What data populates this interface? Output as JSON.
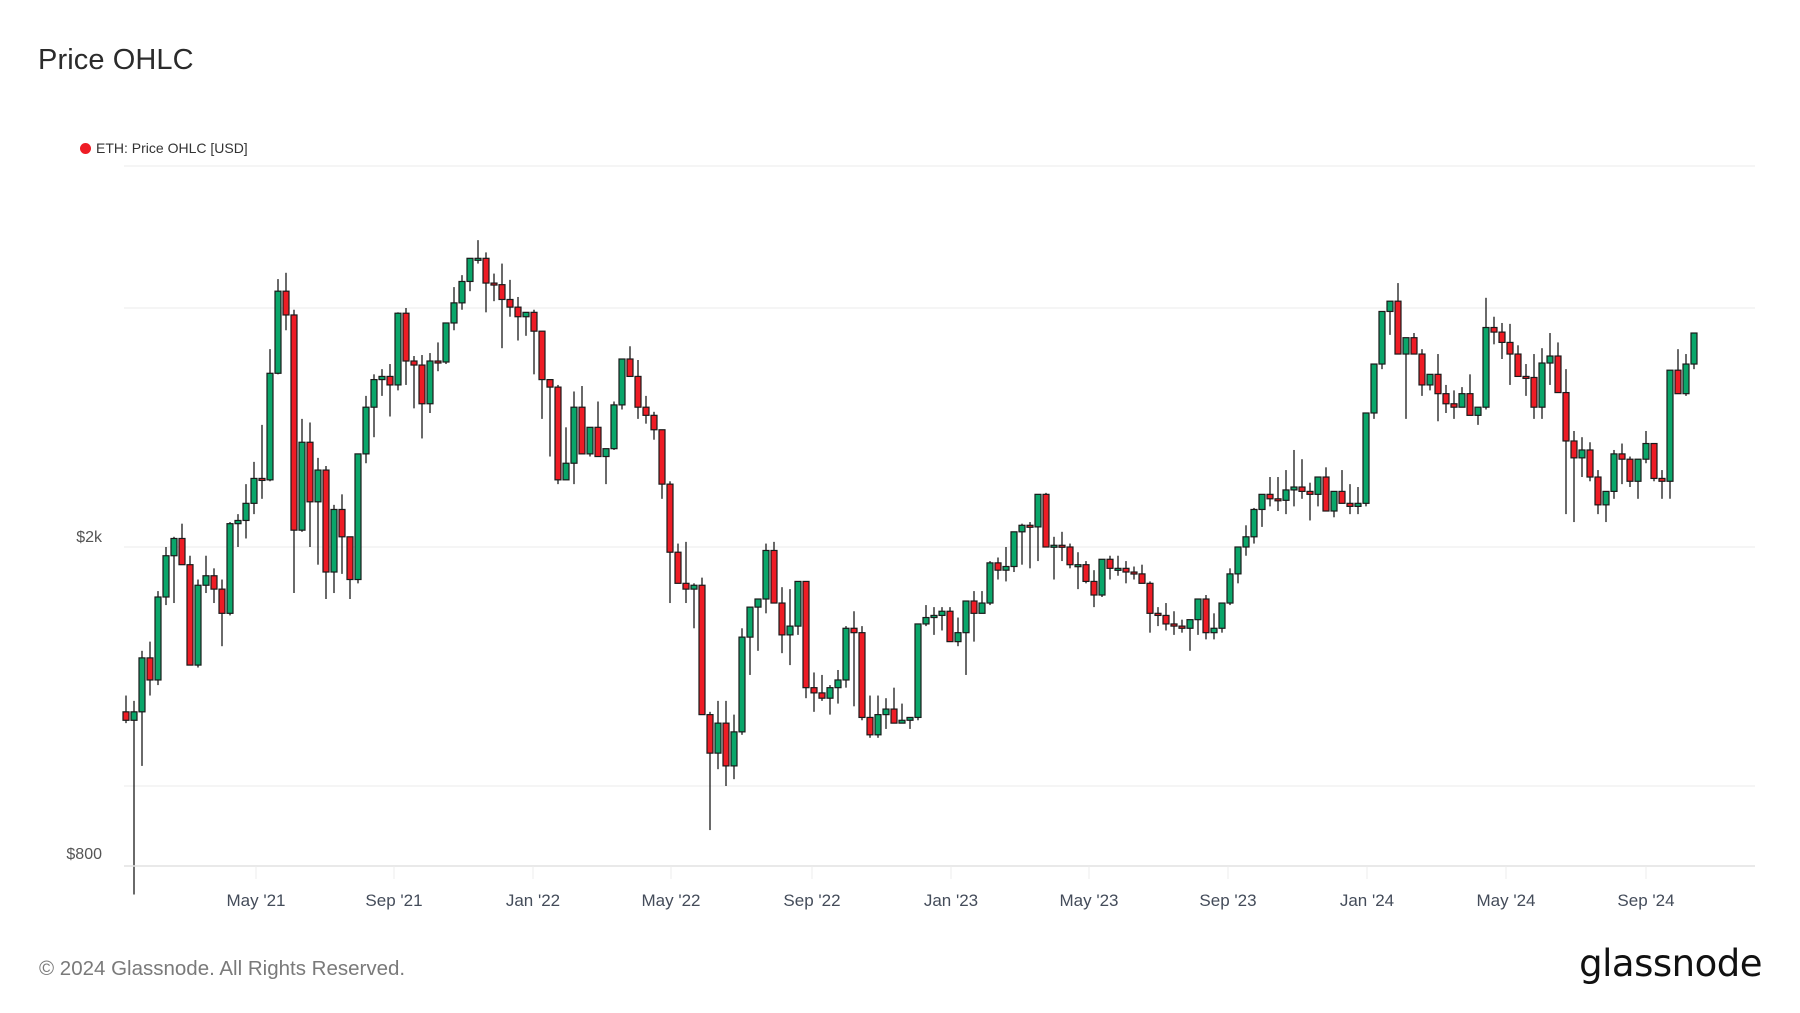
{
  "header": {
    "title": "Price OHLC"
  },
  "legend": {
    "label": "ETH: Price OHLC [USD]",
    "dot_color": "#ee1c25"
  },
  "footer": {
    "copyright": "© 2024 Glassnode. All Rights Reserved.",
    "logo": "glassnode"
  },
  "colors": {
    "up": "#0aa66a",
    "down": "#ee1c25",
    "outline": "#1a1a1a",
    "grid": "#efefef",
    "axis": "#e2e2e2"
  },
  "chart_data": {
    "type": "candlestick",
    "title": "Price OHLC",
    "series_name": "ETH: Price OHLC [USD]",
    "xlabel": "",
    "ylabel": "",
    "y_scale": "log",
    "y_ticks": [
      {
        "value": 2000,
        "label": "$2k"
      },
      {
        "value": 800,
        "label": "$800"
      }
    ],
    "gridlines_y": [
      6000,
      4000,
      2000,
      1000
    ],
    "ylim": [
      800,
      6000
    ],
    "grid": true,
    "legend_position": "top-left",
    "x_ticks": [
      "May '21",
      "Sep '21",
      "Jan '22",
      "May '22",
      "Sep '22",
      "Jan '23",
      "May '23",
      "Sep '23",
      "Jan '24",
      "May '24",
      "Sep '24"
    ],
    "interval": "weekly",
    "candles": [
      [
        1240,
        1300,
        1200,
        1210
      ],
      [
        1210,
        1280,
        730,
        1240
      ],
      [
        1240,
        1480,
        1060,
        1450
      ],
      [
        1450,
        1520,
        1300,
        1360
      ],
      [
        1360,
        1760,
        1340,
        1730
      ],
      [
        1730,
        2000,
        1690,
        1950
      ],
      [
        1950,
        2060,
        1700,
        2050
      ],
      [
        2050,
        2140,
        1950,
        1900
      ],
      [
        1900,
        1950,
        1500,
        1420
      ],
      [
        1420,
        1820,
        1410,
        1790
      ],
      [
        1790,
        1950,
        1750,
        1840
      ],
      [
        1840,
        1880,
        1700,
        1770
      ],
      [
        1770,
        1820,
        1500,
        1650
      ],
      [
        1650,
        2150,
        1640,
        2140
      ],
      [
        2140,
        2200,
        2000,
        2160
      ],
      [
        2160,
        2400,
        2050,
        2270
      ],
      [
        2270,
        2560,
        2200,
        2440
      ],
      [
        2440,
        2850,
        2300,
        2430
      ],
      [
        2430,
        3550,
        2420,
        3310
      ],
      [
        3310,
        4350,
        3300,
        4200
      ],
      [
        4200,
        4430,
        3750,
        3920
      ],
      [
        3920,
        3980,
        1750,
        2100
      ],
      [
        2100,
        2900,
        2090,
        2710
      ],
      [
        2710,
        2870,
        2000,
        2280
      ],
      [
        2280,
        2590,
        1900,
        2500
      ],
      [
        2500,
        2530,
        1720,
        1860
      ],
      [
        1860,
        2260,
        1750,
        2230
      ],
      [
        2230,
        2330,
        1850,
        2060
      ],
      [
        2060,
        2000,
        1720,
        1820
      ],
      [
        1820,
        2600,
        1800,
        2620
      ],
      [
        2620,
        3100,
        2550,
        3000
      ],
      [
        3000,
        3300,
        2750,
        3250
      ],
      [
        3250,
        3350,
        3100,
        3280
      ],
      [
        3280,
        3400,
        2920,
        3200
      ],
      [
        3200,
        3950,
        3150,
        3940
      ],
      [
        3940,
        4000,
        3200,
        3430
      ],
      [
        3430,
        3480,
        2990,
        3390
      ],
      [
        3390,
        3490,
        2740,
        3030
      ],
      [
        3030,
        3510,
        2950,
        3430
      ],
      [
        3430,
        3620,
        3330,
        3420
      ],
      [
        3420,
        3700,
        3400,
        3830
      ],
      [
        3830,
        4250,
        3750,
        4060
      ],
      [
        4060,
        4400,
        3980,
        4320
      ],
      [
        4320,
        4570,
        4200,
        4620
      ],
      [
        4620,
        4870,
        4550,
        4620
      ],
      [
        4620,
        4700,
        3950,
        4300
      ],
      [
        4300,
        4420,
        4080,
        4280
      ],
      [
        4280,
        4550,
        3560,
        4100
      ],
      [
        4100,
        4340,
        3900,
        4010
      ],
      [
        4010,
        4130,
        3640,
        3900
      ],
      [
        3900,
        3920,
        3690,
        3950
      ],
      [
        3950,
        3980,
        3300,
        3740
      ],
      [
        3740,
        3570,
        2900,
        3250
      ],
      [
        3250,
        3170,
        2600,
        3180
      ],
      [
        3180,
        3200,
        2400,
        2430
      ],
      [
        2430,
        2830,
        2440,
        2550
      ],
      [
        2550,
        3140,
        2400,
        3000
      ],
      [
        3000,
        3190,
        2740,
        2620
      ],
      [
        2620,
        2800,
        2600,
        2830
      ],
      [
        2830,
        3050,
        2700,
        2600
      ],
      [
        2600,
        2640,
        2400,
        2660
      ],
      [
        2660,
        3050,
        2650,
        3020
      ],
      [
        3020,
        3450,
        2980,
        3450
      ],
      [
        3450,
        3580,
        3280,
        3280
      ],
      [
        3280,
        3440,
        2900,
        3000
      ],
      [
        3000,
        3100,
        2860,
        2930
      ],
      [
        2930,
        2960,
        2730,
        2810
      ],
      [
        2810,
        2800,
        2300,
        2400
      ],
      [
        2400,
        2420,
        1700,
        1970
      ],
      [
        1970,
        2020,
        1800,
        1800
      ],
      [
        1800,
        2030,
        1700,
        1770
      ],
      [
        1770,
        1800,
        1580,
        1790
      ],
      [
        1790,
        1830,
        1680,
        1230
      ],
      [
        1230,
        1240,
        880,
        1100
      ],
      [
        1100,
        1280,
        1050,
        1200
      ],
      [
        1200,
        1280,
        1000,
        1060
      ],
      [
        1060,
        1230,
        1020,
        1170
      ],
      [
        1170,
        1580,
        1160,
        1540
      ],
      [
        1540,
        1670,
        1380,
        1680
      ],
      [
        1680,
        1700,
        1480,
        1720
      ],
      [
        1720,
        2020,
        1650,
        1980
      ],
      [
        1980,
        2030,
        1700,
        1700
      ],
      [
        1700,
        1780,
        1470,
        1550
      ],
      [
        1550,
        1770,
        1420,
        1590
      ],
      [
        1590,
        1680,
        1550,
        1810
      ],
      [
        1810,
        1800,
        1290,
        1330
      ],
      [
        1330,
        1390,
        1240,
        1310
      ],
      [
        1310,
        1380,
        1280,
        1290
      ],
      [
        1290,
        1340,
        1230,
        1330
      ],
      [
        1330,
        1400,
        1270,
        1360
      ],
      [
        1360,
        1590,
        1330,
        1580
      ],
      [
        1580,
        1660,
        1260,
        1560
      ],
      [
        1560,
        1590,
        1210,
        1220
      ],
      [
        1220,
        1300,
        1150,
        1160
      ],
      [
        1160,
        1300,
        1150,
        1230
      ],
      [
        1230,
        1290,
        1180,
        1250
      ],
      [
        1250,
        1330,
        1220,
        1200
      ],
      [
        1200,
        1270,
        1210,
        1210
      ],
      [
        1210,
        1220,
        1180,
        1220
      ],
      [
        1220,
        1390,
        1210,
        1600
      ],
      [
        1600,
        1690,
        1590,
        1630
      ],
      [
        1630,
        1680,
        1550,
        1640
      ],
      [
        1640,
        1680,
        1570,
        1660
      ],
      [
        1660,
        1680,
        1520,
        1520
      ],
      [
        1520,
        1630,
        1500,
        1560
      ],
      [
        1560,
        1610,
        1380,
        1710
      ],
      [
        1710,
        1760,
        1520,
        1650
      ],
      [
        1650,
        1760,
        1650,
        1700
      ],
      [
        1700,
        1920,
        1690,
        1910
      ],
      [
        1910,
        1940,
        1820,
        1870
      ],
      [
        1870,
        2000,
        1810,
        1890
      ],
      [
        1890,
        1990,
        1860,
        2090
      ],
      [
        2090,
        2140,
        1900,
        2130
      ],
      [
        2130,
        2150,
        1880,
        2120
      ],
      [
        2120,
        2180,
        1920,
        2330
      ],
      [
        2330,
        2340,
        2100,
        2000
      ],
      [
        2000,
        2060,
        1820,
        2010
      ],
      [
        2010,
        2090,
        1920,
        2000
      ],
      [
        2000,
        2020,
        1880,
        1900
      ],
      [
        1900,
        1970,
        1770,
        1900
      ],
      [
        1900,
        1920,
        1800,
        1810
      ],
      [
        1810,
        1870,
        1680,
        1740
      ],
      [
        1740,
        1880,
        1730,
        1930
      ],
      [
        1930,
        1950,
        1820,
        1880
      ],
      [
        1880,
        1950,
        1840,
        1880
      ],
      [
        1880,
        1920,
        1800,
        1860
      ],
      [
        1860,
        1890,
        1820,
        1850
      ],
      [
        1850,
        1900,
        1840,
        1800
      ],
      [
        1800,
        1810,
        1560,
        1650
      ],
      [
        1650,
        1680,
        1590,
        1640
      ],
      [
        1640,
        1700,
        1570,
        1600
      ],
      [
        1600,
        1660,
        1550,
        1590
      ],
      [
        1590,
        1620,
        1560,
        1580
      ],
      [
        1580,
        1600,
        1480,
        1620
      ],
      [
        1620,
        1720,
        1550,
        1720
      ],
      [
        1720,
        1740,
        1530,
        1560
      ],
      [
        1560,
        1650,
        1530,
        1580
      ],
      [
        1580,
        1700,
        1560,
        1700
      ],
      [
        1700,
        1880,
        1690,
        1850
      ],
      [
        1850,
        1960,
        1800,
        2000
      ],
      [
        2000,
        2130,
        1950,
        2060
      ],
      [
        2060,
        2240,
        2020,
        2230
      ],
      [
        2230,
        2300,
        2120,
        2330
      ],
      [
        2330,
        2450,
        2250,
        2300
      ],
      [
        2300,
        2450,
        2220,
        2290
      ],
      [
        2290,
        2500,
        2200,
        2360
      ],
      [
        2360,
        2650,
        2250,
        2380
      ],
      [
        2380,
        2580,
        2300,
        2350
      ],
      [
        2350,
        2410,
        2160,
        2330
      ],
      [
        2330,
        2400,
        2250,
        2450
      ],
      [
        2450,
        2520,
        2270,
        2220
      ],
      [
        2220,
        2300,
        2180,
        2350
      ],
      [
        2350,
        2500,
        2300,
        2270
      ],
      [
        2270,
        2400,
        2200,
        2250
      ],
      [
        2250,
        2380,
        2200,
        2270
      ],
      [
        2270,
        2750,
        2250,
        2950
      ],
      [
        2950,
        3000,
        2900,
        3400
      ],
      [
        3400,
        3600,
        3350,
        3960
      ],
      [
        3960,
        4000,
        3700,
        4080
      ],
      [
        4080,
        4300,
        3550,
        3500
      ],
      [
        3500,
        3600,
        2900,
        3670
      ],
      [
        3670,
        3720,
        3500,
        3500
      ],
      [
        3500,
        3550,
        3100,
        3200
      ],
      [
        3200,
        3300,
        3150,
        3300
      ],
      [
        3300,
        3500,
        2880,
        3120
      ],
      [
        3120,
        3200,
        2950,
        3030
      ],
      [
        3030,
        3150,
        2900,
        3000
      ],
      [
        3000,
        3180,
        3050,
        3120
      ],
      [
        3120,
        3300,
        3050,
        2930
      ],
      [
        2930,
        3000,
        2850,
        3000
      ],
      [
        3000,
        4120,
        2980,
        3780
      ],
      [
        3780,
        3900,
        3600,
        3730
      ],
      [
        3730,
        3830,
        3450,
        3620
      ],
      [
        3620,
        3820,
        3200,
        3500
      ],
      [
        3500,
        3590,
        3300,
        3280
      ],
      [
        3280,
        3400,
        3100,
        3270
      ],
      [
        3270,
        3500,
        2900,
        3000
      ],
      [
        3000,
        3560,
        2900,
        3410
      ],
      [
        3410,
        3720,
        3200,
        3480
      ],
      [
        3480,
        3620,
        3300,
        3130
      ],
      [
        3130,
        3350,
        2200,
        2720
      ],
      [
        2720,
        2800,
        2150,
        2590
      ],
      [
        2590,
        2750,
        2450,
        2650
      ],
      [
        2650,
        2710,
        2420,
        2450
      ],
      [
        2450,
        2500,
        2200,
        2260
      ],
      [
        2260,
        2300,
        2150,
        2350
      ],
      [
        2350,
        2650,
        2300,
        2620
      ],
      [
        2620,
        2700,
        2400,
        2580
      ],
      [
        2580,
        2600,
        2380,
        2420
      ],
      [
        2420,
        2460,
        2300,
        2580
      ],
      [
        2580,
        2800,
        2550,
        2700
      ],
      [
        2700,
        2700,
        2420,
        2440
      ],
      [
        2440,
        2500,
        2300,
        2420
      ],
      [
        2420,
        3050,
        2300,
        3340
      ],
      [
        3340,
        3550,
        3200,
        3120
      ],
      [
        3120,
        3500,
        3100,
        3400
      ],
      [
        3400,
        3500,
        3350,
        3720
      ]
    ]
  }
}
